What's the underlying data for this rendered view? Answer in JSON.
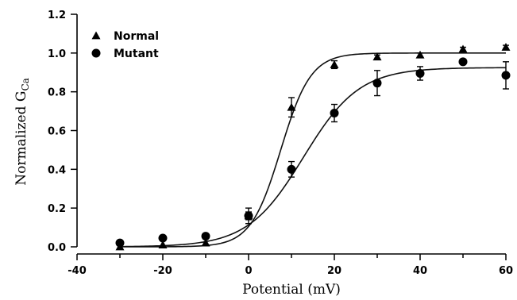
{
  "chart_data": {
    "type": "scatter",
    "title": "",
    "xlabel": "Potential (mV)",
    "ylabel_main": "Normalized G",
    "ylabel_sub": "Ca",
    "xlim": [
      -40,
      60
    ],
    "ylim": [
      0,
      1.2
    ],
    "x_ticks": [
      -40,
      -20,
      0,
      20,
      40,
      60
    ],
    "x_tick_labels": [
      "-40",
      "-20",
      "0",
      "20",
      "40",
      "60"
    ],
    "y_ticks": [
      0,
      0.2,
      0.4,
      0.6,
      0.8,
      1.0,
      1.2
    ],
    "y_tick_labels": [
      "0.0",
      "0.2",
      "0.4",
      "0.6",
      "0.8",
      "1.0",
      "1.2"
    ],
    "grid": false,
    "legend_position": "top-left",
    "series": [
      {
        "name": "Normal",
        "marker": "triangle",
        "x": [
          -30,
          -20,
          -10,
          0,
          10,
          20,
          30,
          40,
          50,
          60
        ],
        "y": [
          0.0,
          0.01,
          0.02,
          0.16,
          0.72,
          0.94,
          0.98,
          0.99,
          1.02,
          1.03
        ],
        "error": [
          0,
          0,
          0,
          0.02,
          0.05,
          0.02,
          0.01,
          0.01,
          0.01,
          0.01
        ],
        "fit": {
          "gmax": 1.0,
          "v_half": 7.5,
          "slope": 3.5
        }
      },
      {
        "name": "Mutant",
        "marker": "circle",
        "x": [
          -30,
          -20,
          -10,
          0,
          10,
          20,
          30,
          40,
          50,
          60
        ],
        "y": [
          0.02,
          0.045,
          0.055,
          0.16,
          0.4,
          0.69,
          0.845,
          0.895,
          0.955,
          0.885
        ],
        "error": [
          0,
          0,
          0,
          0.04,
          0.04,
          0.045,
          0.065,
          0.035,
          0,
          0.07
        ],
        "fit": {
          "gmax": 0.925,
          "v_half": 12.8,
          "slope": 6.5
        }
      }
    ]
  }
}
